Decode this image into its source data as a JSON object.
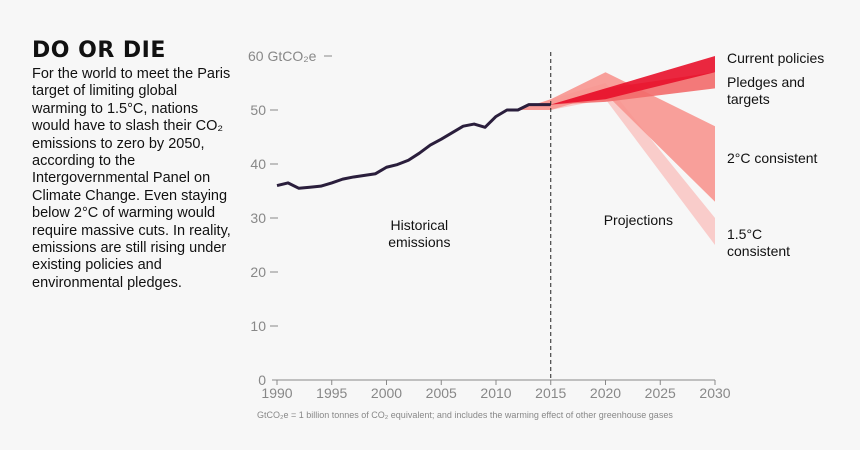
{
  "title": "DO OR DIE",
  "body": "For the world to meet the Paris target of limiting global warming to 1.5°C, nations would have to slash their CO₂ emissions to zero by 2050, according to the Intergovernmental Panel on Climate Change. Even staying below 2°C of warming would require massive cuts. In reality, emissions are still rising under existing policies and environmental pledges.",
  "chart_data": {
    "type": "line",
    "x": [
      1990,
      1991,
      1992,
      1993,
      1994,
      1995,
      1996,
      1997,
      1998,
      1999,
      2000,
      2001,
      2002,
      2003,
      2004,
      2005,
      2006,
      2007,
      2008,
      2009,
      2010,
      2011,
      2012,
      2013,
      2014,
      2015
    ],
    "values": [
      36,
      36.5,
      35.5,
      35.7,
      35.9,
      36.5,
      37.2,
      37.6,
      37.9,
      38.2,
      39.4,
      39.9,
      40.7,
      42,
      43.5,
      44.6,
      45.8,
      47,
      47.4,
      46.8,
      48.8,
      50,
      50,
      51,
      51,
      51
    ],
    "color": "#2a1e3c",
    "bands": [
      {
        "name": "1.5°C consistent",
        "color": "#f8c6c4",
        "x": [
          2012,
          2015,
          2020,
          2030
        ],
        "low": [
          50,
          50,
          52,
          25
        ],
        "high": [
          50,
          52,
          55,
          30
        ]
      },
      {
        "name": "2°C consistent",
        "color": "#f7958f",
        "x": [
          2012,
          2015,
          2020,
          2030
        ],
        "low": [
          50,
          50,
          53,
          33
        ],
        "high": [
          50,
          52,
          57,
          47
        ]
      },
      {
        "name": "Pledges and targets",
        "color": "#f26a6a",
        "x": [
          2015,
          2020,
          2030
        ],
        "low": [
          51,
          51.5,
          54
        ],
        "high": [
          51,
          54,
          57
        ]
      },
      {
        "name": "Current policies",
        "color": "#e8102a",
        "x": [
          2015,
          2020,
          2030
        ],
        "low": [
          51,
          52,
          57
        ],
        "high": [
          51,
          54,
          60
        ]
      }
    ],
    "annotations": [
      {
        "text": "Historical emissions",
        "x": 2003,
        "y": 27
      },
      {
        "text": "Projections",
        "x": 2023,
        "y": 28
      }
    ],
    "divider_x": 2015,
    "xlim": [
      1990,
      2030
    ],
    "xticks": [
      1990,
      1995,
      2000,
      2005,
      2010,
      2015,
      2020,
      2025,
      2030
    ],
    "ylim": [
      0,
      60
    ],
    "yticks": [
      0,
      10,
      20,
      30,
      40,
      50,
      {
        "value": 60,
        "label": "60 GtCO₂e"
      }
    ],
    "footnote": "GtCO₂e = 1 billion tonnes of CO₂ equivalent; and includes the warming effect of other greenhouse gases"
  }
}
